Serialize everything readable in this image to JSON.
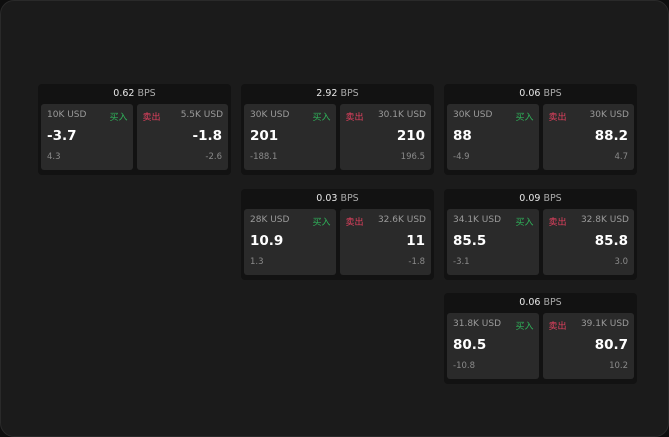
{
  "labels": {
    "buy": "买入",
    "sell": "卖出",
    "unit": "BPS"
  },
  "colors": {
    "buy": "#2fb35a",
    "sell": "#e0405e"
  },
  "cards": [
    {
      "spread": "0.62",
      "bid_size": "10K USD",
      "bid": "-3.7",
      "bid_change": "4.3",
      "ask_size": "5.5K USD",
      "ask": "-1.8",
      "ask_change": "-2.6"
    },
    {
      "spread": "2.92",
      "bid_size": "30K USD",
      "bid": "201",
      "bid_change": "-188.1",
      "ask_size": "30.1K USD",
      "ask": "210",
      "ask_change": "196.5"
    },
    {
      "spread": "0.06",
      "bid_size": "30K USD",
      "bid": "88",
      "bid_change": "-4.9",
      "ask_size": "30K USD",
      "ask": "88.2",
      "ask_change": "4.7"
    },
    {
      "spread": "0.03",
      "bid_size": "28K USD",
      "bid": "10.9",
      "bid_change": "1.3",
      "ask_size": "32.6K USD",
      "ask": "11",
      "ask_change": "-1.8"
    },
    {
      "spread": "0.09",
      "bid_size": "34.1K USD",
      "bid": "85.5",
      "bid_change": "-3.1",
      "ask_size": "32.8K USD",
      "ask": "85.8",
      "ask_change": "3.0"
    },
    {
      "spread": "0.06",
      "bid_size": "31.8K USD",
      "bid": "80.5",
      "bid_change": "-10.8",
      "ask_size": "39.1K USD",
      "ask": "80.7",
      "ask_change": "10.2"
    }
  ]
}
